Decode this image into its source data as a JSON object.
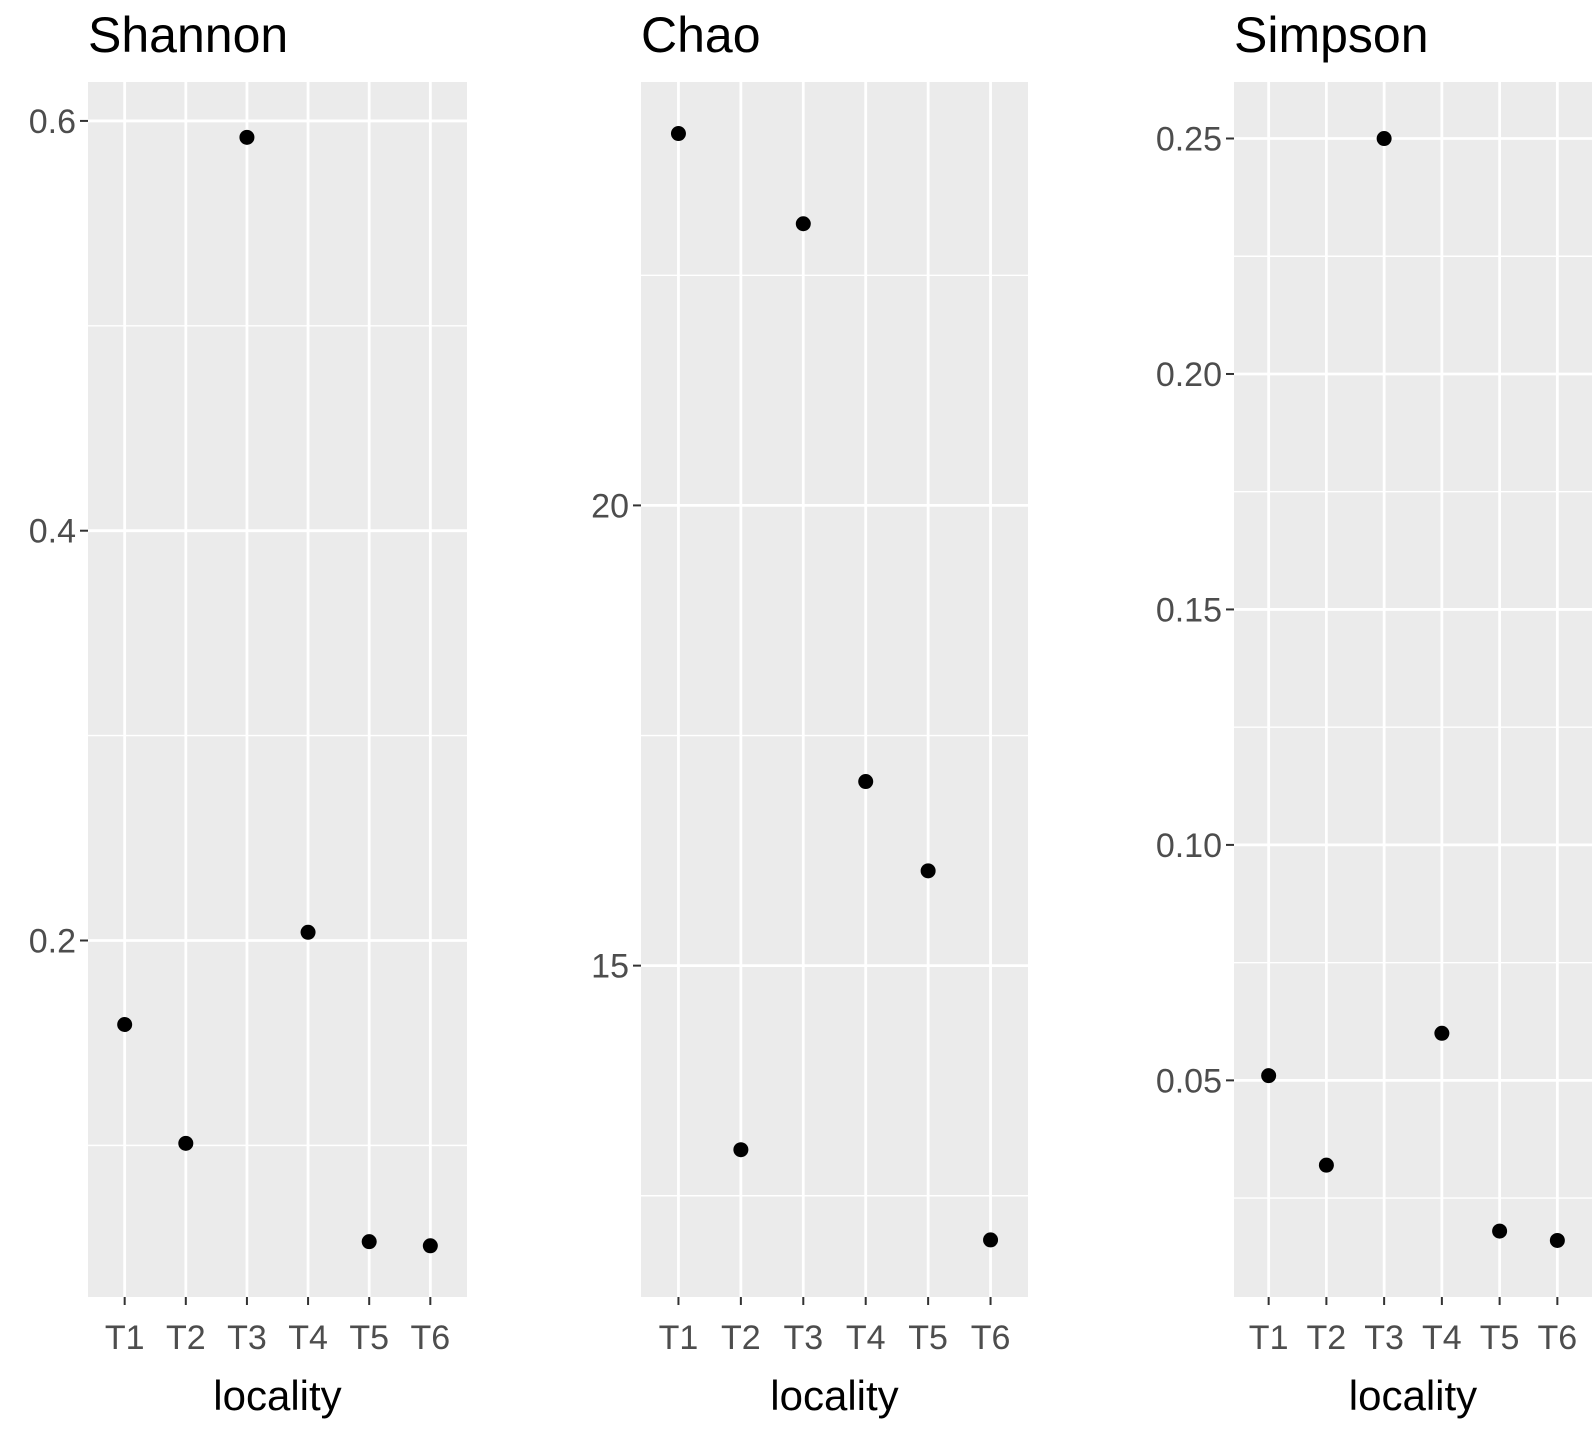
{
  "chart_data": [
    {
      "type": "scatter",
      "title": "Shannon",
      "xlabel": "locality",
      "ylabel": "",
      "categories": [
        "T1",
        "T2",
        "T3",
        "T4",
        "T5",
        "T6"
      ],
      "values": [
        0.159,
        0.101,
        0.592,
        0.204,
        0.053,
        0.051
      ],
      "ylim": [
        0.026,
        0.619
      ],
      "yticks": [
        0.2,
        0.4,
        0.6
      ],
      "ytick_labels": [
        "0.2",
        "0.4",
        "0.6"
      ],
      "grid": true,
      "point_color": "#000000"
    },
    {
      "type": "scatter",
      "title": "Chao",
      "xlabel": "locality",
      "ylabel": "",
      "categories": [
        "T1",
        "T2",
        "T3",
        "T4",
        "T5",
        "T6"
      ],
      "values": [
        24.04,
        13.0,
        23.06,
        17.0,
        16.03,
        12.02
      ],
      "ylim": [
        11.4,
        24.6
      ],
      "yticks": [
        15,
        20
      ],
      "ytick_labels": [
        "15",
        "20"
      ],
      "grid": true,
      "point_color": "#000000"
    },
    {
      "type": "scatter",
      "title": "Simpson",
      "xlabel": "locality",
      "ylabel": "",
      "categories": [
        "T1",
        "T2",
        "T3",
        "T4",
        "T5",
        "T6"
      ],
      "values": [
        0.051,
        0.032,
        0.25,
        0.06,
        0.018,
        0.016
      ],
      "ylim": [
        0.004,
        0.262
      ],
      "yticks": [
        0.05,
        0.1,
        0.15,
        0.2,
        0.25
      ],
      "ytick_labels": [
        "0.05",
        "0.10",
        "0.15",
        "0.20",
        "0.25"
      ],
      "grid": true,
      "point_color": "#000000"
    }
  ],
  "colors": {
    "panel_background": "#ebebeb",
    "grid": "#ffffff",
    "tick_text": "#4d4d4d",
    "text": "#000000"
  }
}
